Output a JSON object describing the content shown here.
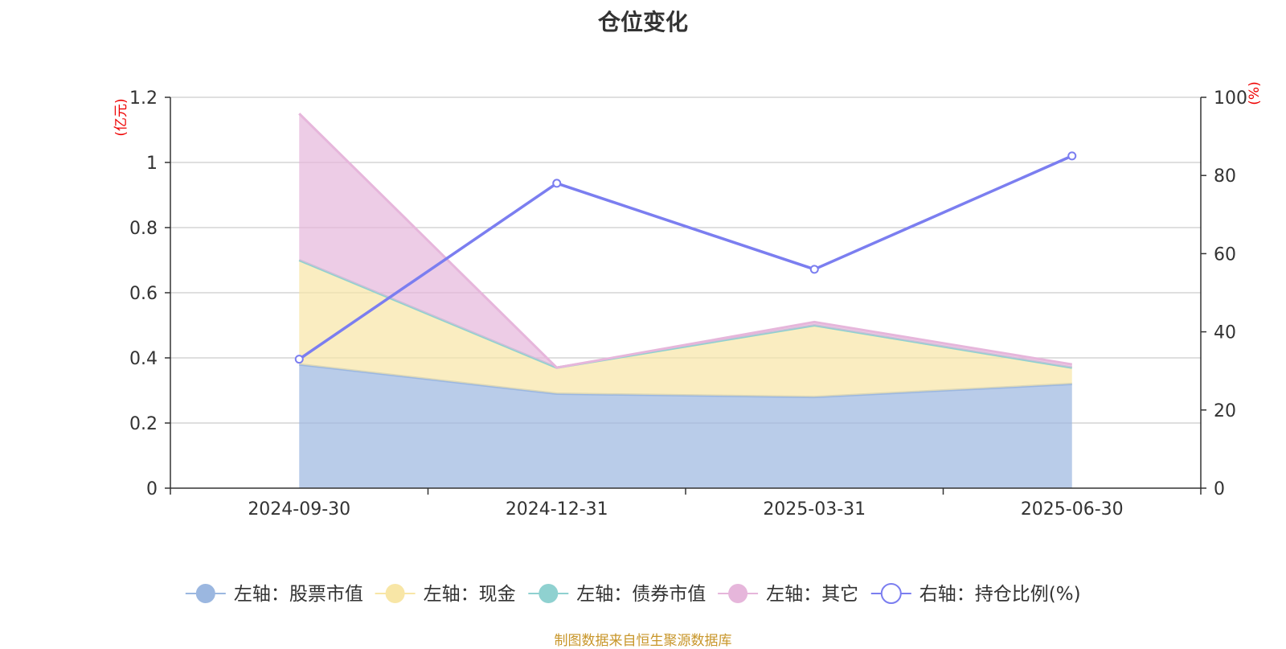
{
  "chart_data": {
    "type": "area",
    "title": "仓位变化",
    "categories": [
      "2024-09-30",
      "2024-12-31",
      "2025-03-31",
      "2025-06-30"
    ],
    "left_axis": {
      "unit_label": "(亿元)",
      "ylim": [
        0,
        1.2
      ],
      "ticks": [
        "0",
        "0.2",
        "0.4",
        "0.6",
        "0.8",
        "1",
        "1.2"
      ]
    },
    "right_axis": {
      "unit_label": "(%)",
      "ylim": [
        0,
        100
      ],
      "ticks": [
        "0",
        "20",
        "40",
        "60",
        "80",
        "100"
      ]
    },
    "stacked": true,
    "grid": true,
    "legend_position": "bottom",
    "series": [
      {
        "name": "左轴：股票市值",
        "axis": "left",
        "kind": "area",
        "color": "#9bb7e0",
        "values": [
          0.38,
          0.29,
          0.28,
          0.32
        ]
      },
      {
        "name": "左轴：现金",
        "axis": "left",
        "kind": "area",
        "color": "#f8e6a6",
        "values": [
          0.32,
          0.08,
          0.22,
          0.05
        ]
      },
      {
        "name": "左轴：债券市值",
        "axis": "left",
        "kind": "area",
        "color": "#8fd1d0",
        "values": [
          0,
          0,
          0,
          0
        ]
      },
      {
        "name": "左轴：其它",
        "axis": "left",
        "kind": "area",
        "color": "#e6b6db",
        "values": [
          0.45,
          0,
          0.01,
          0.01
        ]
      },
      {
        "name": "右轴：持仓比例(%)",
        "axis": "right",
        "kind": "line",
        "color": "#7b7ef0",
        "values": [
          33,
          78,
          56,
          85
        ]
      }
    ],
    "source": "制图数据来自恒生聚源数据库"
  }
}
